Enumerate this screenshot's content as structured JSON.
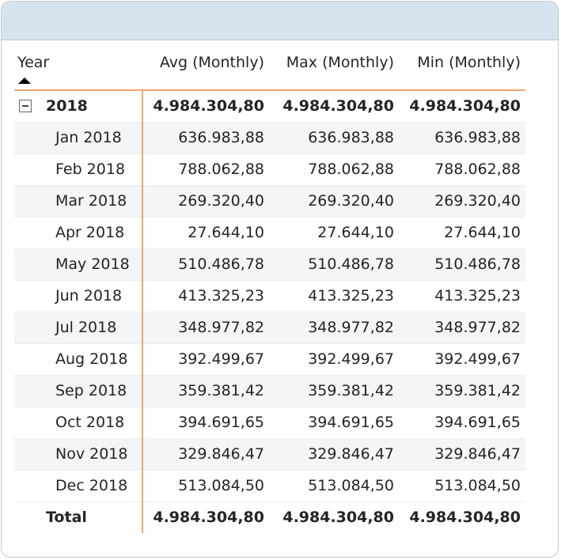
{
  "matrix": {
    "headers": {
      "year": "Year",
      "avg": "Avg (Monthly)",
      "max": "Max (Monthly)",
      "min": "Min (Monthly)"
    },
    "group": {
      "label": "2018",
      "avg": "4.984.304,80",
      "max": "4.984.304,80",
      "min": "4.984.304,80"
    },
    "rows": [
      {
        "label": "Jan 2018",
        "avg": "636.983,88",
        "max": "636.983,88",
        "min": "636.983,88"
      },
      {
        "label": "Feb 2018",
        "avg": "788.062,88",
        "max": "788.062,88",
        "min": "788.062,88"
      },
      {
        "label": "Mar 2018",
        "avg": "269.320,40",
        "max": "269.320,40",
        "min": "269.320,40"
      },
      {
        "label": "Apr 2018",
        "avg": "27.644,10",
        "max": "27.644,10",
        "min": "27.644,10"
      },
      {
        "label": "May 2018",
        "avg": "510.486,78",
        "max": "510.486,78",
        "min": "510.486,78"
      },
      {
        "label": "Jun 2018",
        "avg": "413.325,23",
        "max": "413.325,23",
        "min": "413.325,23"
      },
      {
        "label": "Jul 2018",
        "avg": "348.977,82",
        "max": "348.977,82",
        "min": "348.977,82"
      },
      {
        "label": "Aug 2018",
        "avg": "392.499,67",
        "max": "392.499,67",
        "min": "392.499,67"
      },
      {
        "label": "Sep 2018",
        "avg": "359.381,42",
        "max": "359.381,42",
        "min": "359.381,42"
      },
      {
        "label": "Oct 2018",
        "avg": "394.691,65",
        "max": "394.691,65",
        "min": "394.691,65"
      },
      {
        "label": "Nov 2018",
        "avg": "329.846,47",
        "max": "329.846,47",
        "min": "329.846,47"
      },
      {
        "label": "Dec 2018",
        "avg": "513.084,50",
        "max": "513.084,50",
        "min": "513.084,50"
      }
    ],
    "total": {
      "label": "Total",
      "avg": "4.984.304,80",
      "max": "4.984.304,80",
      "min": "4.984.304,80"
    }
  },
  "colors": {
    "accent": "#f2a46a",
    "title_bar": "#d6e4ef",
    "alt_row": "#f5f5f5"
  }
}
